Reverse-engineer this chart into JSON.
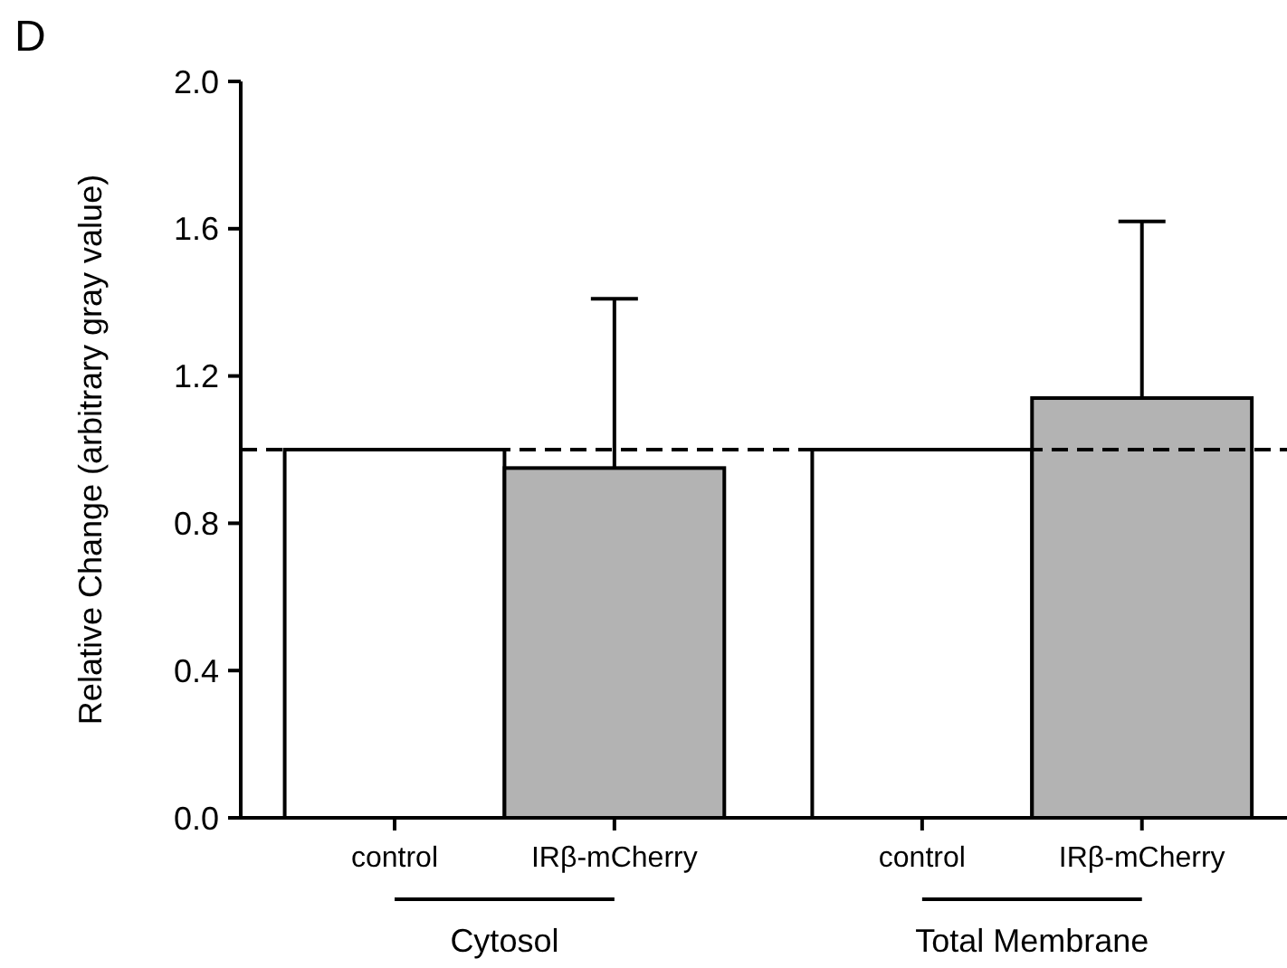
{
  "chart_data": {
    "type": "bar",
    "title": "D",
    "ylabel": "Relative Change (arbitrary gray value)",
    "categories": [
      "control",
      "IRβ-mCherry",
      "control",
      "IRβ-mCherry"
    ],
    "values": [
      1.0,
      0.95,
      1.0,
      1.14
    ],
    "colors": [
      "#ffffff",
      "#b3b3b3",
      "#ffffff",
      "#b3b3b3"
    ],
    "errors": [
      null,
      [
        0.95,
        1.41
      ],
      null,
      [
        1.14,
        1.62
      ]
    ],
    "ylim": [
      0,
      2.0
    ],
    "yticks": [
      {
        "value": 0,
        "label": "0.0"
      },
      0.4,
      0.8,
      1.2,
      1.6,
      {
        "value": 2,
        "label": "2.0"
      }
    ],
    "ref_lines": [
      {
        "axis": "y",
        "value": 1.0,
        "line_style": "dashed"
      }
    ],
    "annotations": [
      "Cytosol",
      "Total Membrane"
    ],
    "grid": false
  }
}
